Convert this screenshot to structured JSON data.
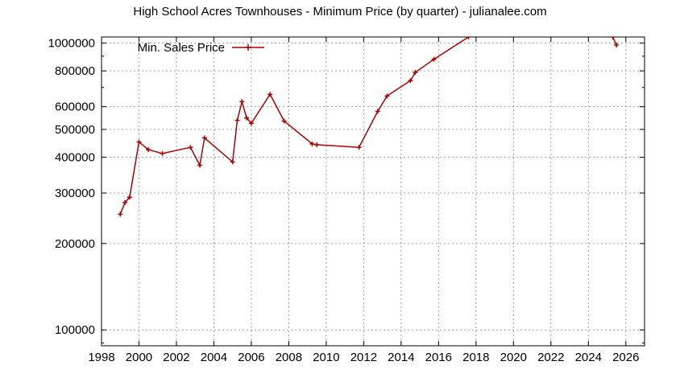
{
  "chart_data": {
    "type": "line",
    "title": "High School Acres Townhouses - Minimum Price (by quarter) - julianalee.com",
    "xlabel": "",
    "ylabel": "",
    "y_scale": "log",
    "xlim": [
      1998,
      2027
    ],
    "ylim": [
      88000,
      1050000
    ],
    "x_ticks": [
      1998,
      2000,
      2002,
      2004,
      2006,
      2008,
      2010,
      2012,
      2014,
      2016,
      2018,
      2020,
      2022,
      2024,
      2026
    ],
    "x_tick_labels": [
      "1998",
      "2000",
      "2002",
      "2004",
      "2006",
      "2008",
      "2010",
      "2012",
      "2014",
      "2016",
      "2018",
      "2020",
      "2022",
      "2024",
      "2026"
    ],
    "y_ticks": [
      100000,
      200000,
      300000,
      400000,
      500000,
      600000,
      800000,
      1000000
    ],
    "y_tick_labels": [
      "100000",
      "200000",
      "300000",
      "400000",
      "500000",
      "600000",
      "800000",
      "1000000"
    ],
    "grid": true,
    "legend_position": "top-left",
    "series": [
      {
        "name": "Min. Sales Price",
        "color": "#aa0000",
        "marker": "plus",
        "x": [
          1999.0,
          1999.25,
          1999.5,
          2000.0,
          2000.5,
          2001.25,
          2002.75,
          2003.25,
          2003.5,
          2005.0,
          2005.25,
          2005.5,
          2005.75,
          2006.0,
          2007.0,
          2007.75,
          2009.25,
          2009.5,
          2011.75,
          2012.75,
          2013.25,
          2014.5,
          2014.75,
          2015.75,
          2017.6
        ],
        "y": [
          253000,
          278000,
          290000,
          452000,
          425000,
          412000,
          433000,
          375000,
          467000,
          385000,
          538000,
          625000,
          548000,
          525000,
          663000,
          535000,
          445000,
          442000,
          433000,
          578000,
          654000,
          740000,
          790000,
          878000,
          1050000
        ]
      },
      {
        "name": "",
        "color": "#aa0000",
        "marker": "plus",
        "x": [
          2025.3,
          2025.5
        ],
        "y": [
          1050000,
          985000
        ]
      }
    ]
  },
  "legend": {
    "label": "Min. Sales Price"
  }
}
